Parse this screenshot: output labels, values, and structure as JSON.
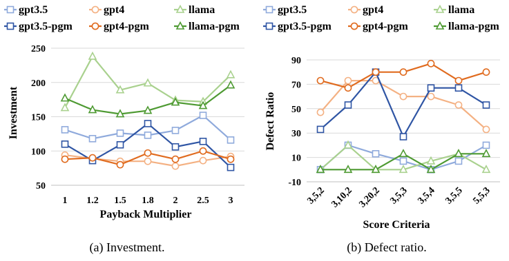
{
  "chart_data": [
    {
      "type": "line",
      "xlabel": "Payback Multiplier",
      "ylabel": "Investment",
      "ylim": [
        50,
        250
      ],
      "yticks": [
        50,
        100,
        150,
        200,
        250
      ],
      "grid": "horizontal",
      "legend_position": "top",
      "caption": "(a) Investment.",
      "categories": [
        "1",
        "1.2",
        "1.5",
        "1.8",
        "2",
        "2.5",
        "3"
      ],
      "series": [
        {
          "name": "gpt3.5",
          "color": "#8faadc",
          "marker": "square",
          "values": [
            131,
            118,
            126,
            123,
            130,
            152,
            116
          ]
        },
        {
          "name": "gpt4",
          "color": "#f4b183",
          "marker": "circle",
          "values": [
            94,
            89,
            85,
            85,
            78,
            86,
            92
          ]
        },
        {
          "name": "llama",
          "color": "#a9d18e",
          "marker": "triangle",
          "values": [
            163,
            238,
            189,
            199,
            174,
            172,
            211
          ]
        },
        {
          "name": "gpt3.5-pgm",
          "color": "#2f55a4",
          "marker": "square",
          "values": [
            110,
            86,
            109,
            140,
            106,
            114,
            76
          ]
        },
        {
          "name": "gpt4-pgm",
          "color": "#e06b1f",
          "marker": "circle",
          "values": [
            88,
            90,
            80,
            97,
            88,
            100,
            88
          ]
        },
        {
          "name": "llama-pgm",
          "color": "#4e9a32",
          "marker": "triangle",
          "values": [
            177,
            160,
            154,
            159,
            171,
            166,
            196
          ]
        }
      ]
    },
    {
      "type": "line",
      "xlabel": "Score Criteria",
      "ylabel": "Defect Ratio",
      "ylim": [
        -10,
        90
      ],
      "yticks": [
        -10,
        10,
        30,
        50,
        70,
        90
      ],
      "grid": "horizontal",
      "legend_position": "top",
      "caption": "(b) Defect ratio.",
      "categories": [
        "3,5,2",
        "3,10,2",
        "3,20,2",
        "3,5,3",
        "3,5,4",
        "3,5,5",
        "5,5,3"
      ],
      "series": [
        {
          "name": "gpt3.5",
          "color": "#8faadc",
          "marker": "square",
          "values": [
            0,
            20,
            13,
            7,
            0,
            7,
            20
          ]
        },
        {
          "name": "gpt4",
          "color": "#f4b183",
          "marker": "circle",
          "values": [
            47,
            73,
            73,
            60,
            60,
            53,
            33
          ]
        },
        {
          "name": "llama",
          "color": "#a9d18e",
          "marker": "triangle",
          "values": [
            0,
            20,
            0,
            0,
            7,
            13,
            0
          ]
        },
        {
          "name": "gpt3.5-pgm",
          "color": "#2f55a4",
          "marker": "square",
          "values": [
            33,
            53,
            80,
            27,
            67,
            67,
            53
          ]
        },
        {
          "name": "gpt4-pgm",
          "color": "#e06b1f",
          "marker": "circle",
          "values": [
            73,
            67,
            80,
            80,
            87,
            73,
            80
          ]
        },
        {
          "name": "llama-pgm",
          "color": "#4e9a32",
          "marker": "triangle",
          "values": [
            0,
            0,
            0,
            13,
            0,
            13,
            13
          ]
        }
      ]
    }
  ]
}
